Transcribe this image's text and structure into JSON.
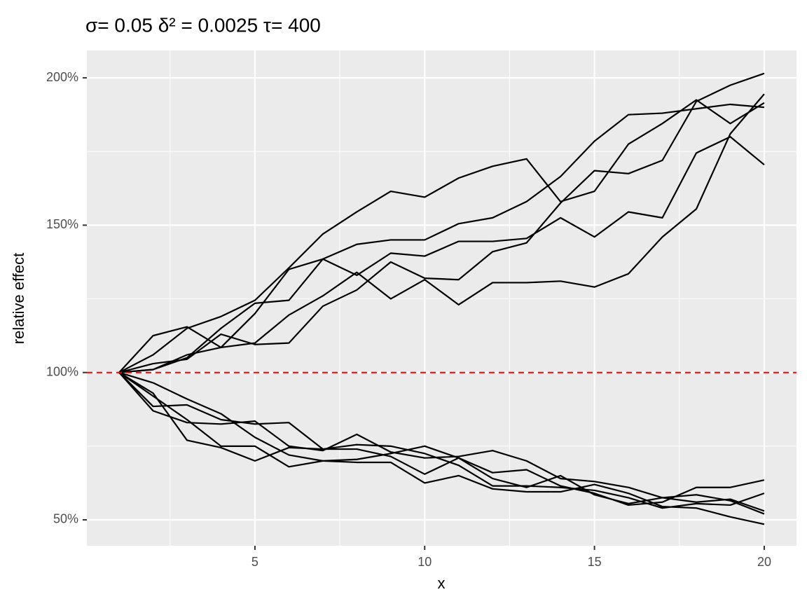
{
  "chart_data": {
    "type": "line",
    "title": "σ= 0.05 δ² = 0.0025 τ= 400",
    "x_label": "x",
    "y_label": "relative effect",
    "x": [
      1,
      2,
      3,
      4,
      5,
      6,
      7,
      8,
      9,
      10,
      11,
      12,
      13,
      14,
      15,
      16,
      17,
      18,
      19,
      20
    ],
    "xlim": [
      0.05,
      20.95
    ],
    "ylim": [
      41.2,
      209.3
    ],
    "xticks": [
      5,
      10,
      15,
      20
    ],
    "x_minor_ticks": [
      2.5,
      7.5,
      12.5,
      17.5
    ],
    "yticks": [
      {
        "value": 50,
        "label": "50%"
      },
      {
        "value": 100,
        "label": "100%"
      },
      {
        "value": 150,
        "label": "150%"
      },
      {
        "value": 200,
        "label": "200%"
      }
    ],
    "y_minor_ticks": [
      75,
      125,
      175
    ],
    "grid": true,
    "hline": {
      "value": 100,
      "color": "#ff0000",
      "dashed": true
    },
    "series": [
      {
        "color": "#000000",
        "values": [
          100,
          106,
          115,
          119,
          124.5,
          135.5,
          147,
          154.5,
          161.5,
          159.5,
          166,
          170,
          172.5,
          158,
          161.5,
          177.5,
          184.5,
          192.5,
          184.5,
          191.5
        ]
      },
      {
        "color": "#000000",
        "values": [
          100,
          101,
          105,
          115,
          123.5,
          124.5,
          138.5,
          143.5,
          145,
          145,
          150.5,
          152.5,
          158,
          166.5,
          178.5,
          187.5,
          188,
          189.5,
          191,
          190
        ]
      },
      {
        "color": "#000000",
        "values": [
          100,
          103,
          104.5,
          113,
          109.5,
          110,
          122.5,
          128,
          137.5,
          132,
          131.5,
          141,
          144,
          157.5,
          168.5,
          167.5,
          172,
          192,
          197.5,
          201.5
        ]
      },
      {
        "color": "#000000",
        "values": [
          100,
          101,
          106,
          108.5,
          120,
          135,
          138.5,
          133,
          140.5,
          139.5,
          144.5,
          144.5,
          145.5,
          152.5,
          146,
          154.5,
          152.5,
          174.5,
          180,
          170.5
        ]
      },
      {
        "color": "#000000",
        "values": [
          100,
          112.5,
          115.5,
          108.5,
          110,
          119.5,
          126,
          134,
          125,
          131.5,
          123,
          130.5,
          130.5,
          131,
          129,
          133.5,
          146,
          155.5,
          181,
          194.5
        ]
      },
      {
        "color": "#000000",
        "values": [
          100,
          96.5,
          91,
          86,
          78,
          72,
          70,
          69.5,
          69.5,
          62.5,
          65,
          60.5,
          59.5,
          59.5,
          62,
          59,
          54.5,
          54,
          51,
          48.5
        ]
      },
      {
        "color": "#000000",
        "values": [
          100,
          92,
          84,
          75,
          75,
          68,
          70,
          70.5,
          72.5,
          75,
          71,
          66,
          67,
          61.5,
          59,
          55,
          56,
          61,
          61,
          63.5
        ]
      },
      {
        "color": "#000000",
        "values": [
          100,
          87,
          83,
          82.5,
          83.5,
          75,
          73.5,
          79,
          73,
          71,
          71.5,
          73.5,
          70,
          64,
          63,
          61,
          57.5,
          56,
          57,
          53
        ]
      },
      {
        "color": "#000000",
        "values": [
          100,
          93,
          77,
          74.5,
          70,
          74.5,
          74,
          75.5,
          75,
          72.5,
          68.5,
          61.5,
          61.5,
          61,
          60,
          57.5,
          54,
          55.5,
          55,
          59
        ]
      },
      {
        "color": "#000000",
        "values": [
          100,
          88.5,
          89,
          84,
          82.5,
          83,
          74,
          74,
          71.5,
          65.5,
          71,
          64,
          61,
          65,
          58.5,
          55.5,
          57.5,
          58.5,
          56.5,
          52
        ]
      }
    ]
  }
}
